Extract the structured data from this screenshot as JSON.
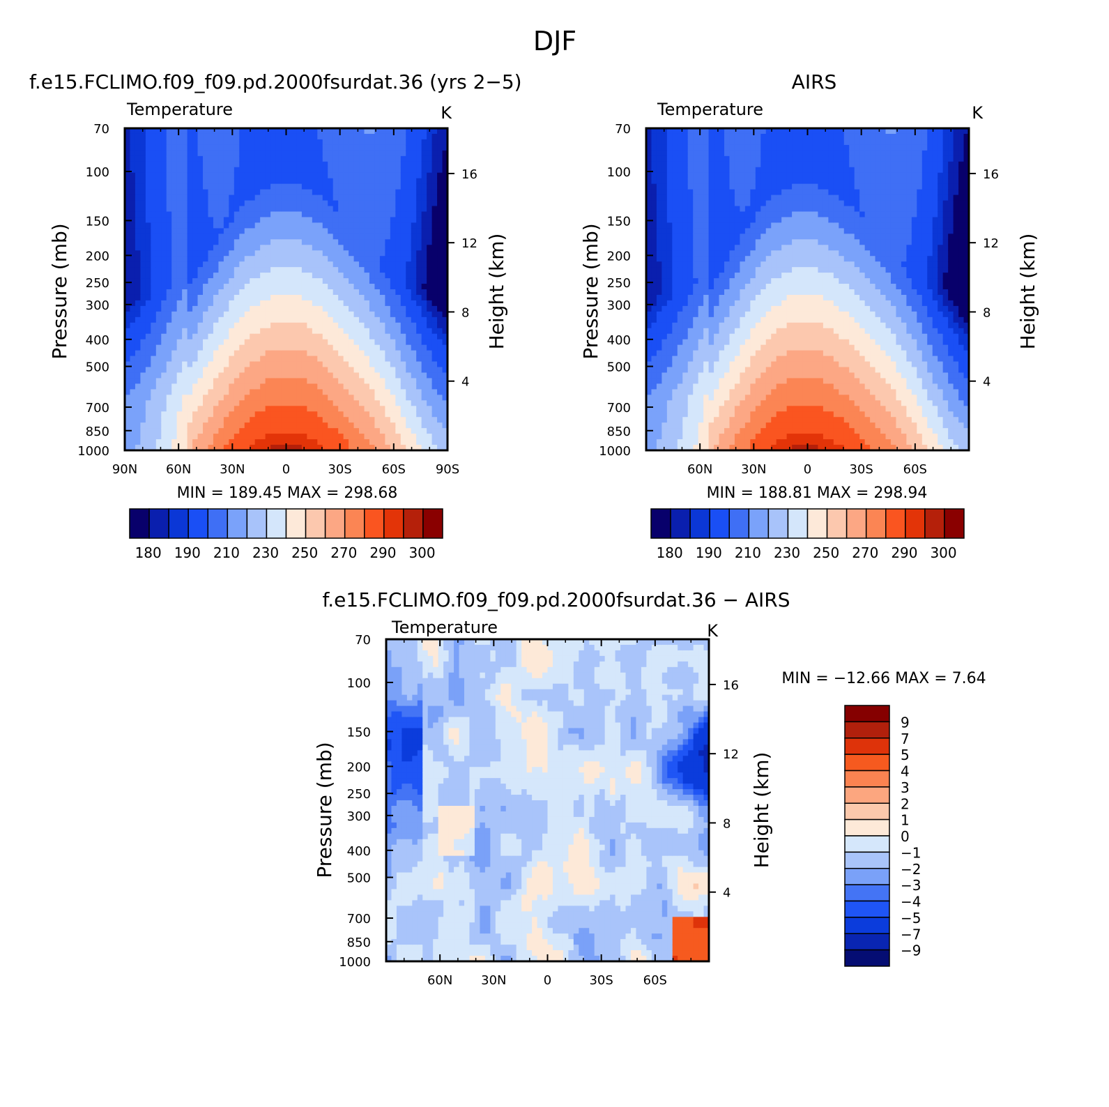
{
  "figure": {
    "title": "DJF"
  },
  "colors": {
    "temperature_palette": [
      "#08006b",
      "#0a1fae",
      "#0b37d6",
      "#1a4ff5",
      "#3f6ff5",
      "#7aa2fa",
      "#a8c3fa",
      "#d4e6fb",
      "#fde9d9",
      "#fcc8ae",
      "#fca784",
      "#fb8554",
      "#fa5520",
      "#e33408",
      "#b5200a",
      "#8a0000"
    ],
    "difference_palette": [
      "#050d73",
      "#0925b2",
      "#0b3cdc",
      "#1f55f5",
      "#4474f5",
      "#7aa1f8",
      "#a9c4fa",
      "#d5e7fb",
      "#fde9d8",
      "#fcc9ac",
      "#fca67f",
      "#fb8351",
      "#f65a1f",
      "#de330a",
      "#b1200c",
      "#850000"
    ]
  },
  "chart_data": [
    {
      "type": "heatmap",
      "title": "f.e15.FCLIMO.f09_f09.pd.2000fsurdat.36 (yrs 2−5)",
      "subtitle_left": "Temperature",
      "subtitle_right": "K",
      "xlabel": "",
      "ylabel": "Pressure (mb)",
      "ylabel_right": "Height (km)",
      "x_ticks": [
        "90N",
        "60N",
        "30N",
        "0",
        "30S",
        "60S",
        "90S"
      ],
      "x_tick_values": [
        90,
        60,
        30,
        0,
        -30,
        -60,
        -90
      ],
      "xlim": [
        90,
        -90
      ],
      "y_ticks": [
        "70",
        "100",
        "150",
        "200",
        "250",
        "300",
        "400",
        "500",
        "700",
        "850",
        "1000"
      ],
      "y_tick_values": [
        70,
        100,
        150,
        200,
        250,
        300,
        400,
        500,
        700,
        850,
        1000
      ],
      "ylim": [
        1000,
        70
      ],
      "y_scale": "log",
      "y_right_ticks": [
        "16",
        "12",
        "8",
        "4"
      ],
      "y_right_tick_values": [
        16,
        12,
        8,
        4
      ],
      "stats": "MIN = 189.45 MAX = 298.68",
      "min": 189.45,
      "max": 298.68,
      "colorbar_labels": [
        "180",
        "190",
        "210",
        "230",
        "250",
        "270",
        "290",
        "300"
      ],
      "contour_levels": [
        175,
        180,
        185,
        190,
        200,
        210,
        220,
        230,
        240,
        250,
        260,
        270,
        280,
        290,
        295,
        300
      ],
      "colorbar_orientation": "horizontal"
    },
    {
      "type": "heatmap",
      "title": "AIRS",
      "subtitle_left": "Temperature",
      "subtitle_right": "K",
      "xlabel": "",
      "ylabel": "Pressure (mb)",
      "ylabel_right": "Height (km)",
      "x_ticks": [
        "60N",
        "30N",
        "0",
        "30S",
        "60S"
      ],
      "x_tick_values": [
        60,
        30,
        0,
        -30,
        -60
      ],
      "xlim": [
        90,
        -90
      ],
      "y_ticks": [
        "70",
        "100",
        "150",
        "200",
        "250",
        "300",
        "400",
        "500",
        "700",
        "850",
        "1000"
      ],
      "y_tick_values": [
        70,
        100,
        150,
        200,
        250,
        300,
        400,
        500,
        700,
        850,
        1000
      ],
      "ylim": [
        1000,
        70
      ],
      "y_scale": "log",
      "y_right_ticks": [
        "16",
        "12",
        "8",
        "4"
      ],
      "y_right_tick_values": [
        16,
        12,
        8,
        4
      ],
      "stats": "MIN = 188.81 MAX = 298.94",
      "min": 188.81,
      "max": 298.94,
      "colorbar_labels": [
        "180",
        "190",
        "210",
        "230",
        "250",
        "270",
        "290",
        "300"
      ],
      "contour_levels": [
        175,
        180,
        185,
        190,
        200,
        210,
        220,
        230,
        240,
        250,
        260,
        270,
        280,
        290,
        295,
        300
      ],
      "colorbar_orientation": "horizontal"
    },
    {
      "type": "heatmap",
      "title": "f.e15.FCLIMO.f09_f09.pd.2000fsurdat.36 − AIRS",
      "subtitle_left": "Temperature",
      "subtitle_right": "K",
      "xlabel": "",
      "ylabel": "Pressure (mb)",
      "ylabel_right": "Height (km)",
      "x_ticks": [
        "60N",
        "30N",
        "0",
        "30S",
        "60S"
      ],
      "x_tick_values": [
        60,
        30,
        0,
        -30,
        -60
      ],
      "xlim": [
        90,
        -90
      ],
      "y_ticks": [
        "70",
        "100",
        "150",
        "200",
        "250",
        "300",
        "400",
        "500",
        "700",
        "850",
        "1000"
      ],
      "y_tick_values": [
        70,
        100,
        150,
        200,
        250,
        300,
        400,
        500,
        700,
        850,
        1000
      ],
      "ylim": [
        1000,
        70
      ],
      "y_scale": "log",
      "y_right_ticks": [
        "16",
        "12",
        "8",
        "4"
      ],
      "y_right_tick_values": [
        16,
        12,
        8,
        4
      ],
      "stats": "MIN = −12.66 MAX = 7.64",
      "min": -12.66,
      "max": 7.64,
      "colorbar_labels": [
        "9",
        "7",
        "5",
        "4",
        "3",
        "2",
        "1",
        "0",
        "−1",
        "−2",
        "−3",
        "−4",
        "−5",
        "−7",
        "−9"
      ],
      "colorbar_orientation": "vertical"
    }
  ]
}
